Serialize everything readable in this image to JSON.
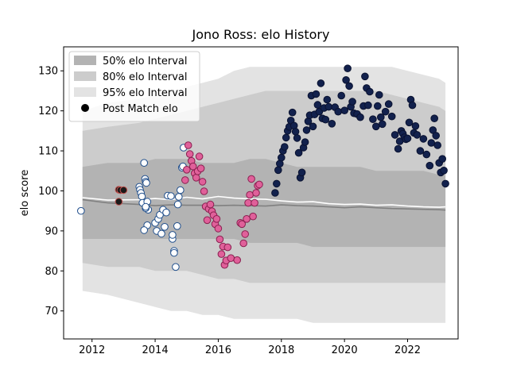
{
  "chart_data": {
    "type": "scatter",
    "title": "Jono Ross: elo History",
    "xlabel": "",
    "ylabel": "elo score",
    "xlim": [
      2011.1,
      2023.6
    ],
    "ylim": [
      63,
      136
    ],
    "xticks": [
      2012,
      2014,
      2016,
      2018,
      2020,
      2022
    ],
    "yticks": [
      70,
      80,
      90,
      100,
      110,
      120,
      130
    ],
    "grid": false,
    "legend_position": "top-left",
    "legend": {
      "band50": "50% elo Interval",
      "band80": "80% elo Interval",
      "band95": "95% elo Interval",
      "points": "Post Match elo"
    },
    "colors": {
      "band50": "#b3b3b3",
      "band80": "#cccccc",
      "band95": "#e3e3e3",
      "median_line": "#808080",
      "mean_line": "#ffffff",
      "seg_2012_fill": "#1a1a1a",
      "seg_2012_edge": "#c0504d",
      "seg_2013_fill": "#ffffff",
      "seg_2013_edge": "#1f4e8c",
      "seg_2015_fill": "#e0609a",
      "seg_2015_edge": "#8a2050",
      "seg_2018_fill": "#12214d",
      "seg_2018_edge": "#0a1230"
    },
    "bands": {
      "x": [
        2011.7,
        2012.5,
        2013.5,
        2014.0,
        2014.5,
        2015.0,
        2015.5,
        2016.0,
        2016.5,
        2017.0,
        2017.5,
        2018.0,
        2018.5,
        2019.0,
        2019.5,
        2020.0,
        2020.5,
        2021.0,
        2021.5,
        2022.0,
        2022.5,
        2023.0,
        2023.2
      ],
      "p95_upper": [
        120,
        122,
        123,
        124,
        125,
        126,
        127,
        128,
        130,
        131,
        131,
        131,
        131,
        131,
        131,
        131,
        131,
        131,
        131,
        130,
        129,
        128,
        127
      ],
      "p80_upper": [
        115,
        116,
        117,
        118,
        119,
        120,
        121,
        122,
        123,
        124,
        125,
        125,
        125,
        125,
        125,
        125,
        125,
        125,
        124,
        123,
        122,
        121,
        120
      ],
      "p50_upper": [
        106,
        107,
        107,
        108,
        108,
        108,
        107,
        107,
        107,
        108,
        108,
        107,
        106,
        106,
        106,
        106,
        106,
        105,
        105,
        105,
        105,
        104,
        104
      ],
      "p50_lower": [
        88,
        88,
        88,
        88,
        88,
        88,
        88,
        88,
        88,
        87,
        87,
        87,
        87,
        86,
        86,
        86,
        86,
        86,
        86,
        86,
        86,
        86,
        86
      ],
      "p80_lower": [
        82,
        81,
        81,
        80,
        80,
        80,
        79,
        78,
        78,
        77,
        77,
        77,
        77,
        77,
        77,
        77,
        77,
        77,
        77,
        77,
        77,
        77,
        77
      ],
      "p95_lower": [
        75,
        74,
        72,
        71,
        70,
        70,
        69,
        69,
        68,
        68,
        68,
        68,
        68,
        67,
        67,
        67,
        67,
        67,
        67,
        67,
        67,
        67,
        67
      ],
      "median": [
        97.8,
        97.0,
        96.6,
        96.3,
        96.5,
        96.4,
        96.4,
        96.3,
        96.4,
        96.3,
        96.2,
        96.5,
        96.3,
        96.2,
        96.0,
        95.8,
        96.0,
        95.8,
        95.6,
        95.5,
        95.4,
        95.3,
        95.2
      ],
      "mean": [
        98.3,
        97.7,
        97.8,
        98.1,
        97.8,
        98.4,
        98.0,
        98.6,
        98.2,
        98.0,
        97.9,
        97.5,
        97.2,
        97.3,
        96.8,
        96.6,
        96.7,
        96.4,
        96.5,
        96.2,
        96.0,
        95.9,
        96.0
      ]
    },
    "series": [
      {
        "group": "2012",
        "x": [
          2012.85,
          2012.9,
          2013.0,
          2012.85
        ],
        "y": [
          100.3,
          100.2,
          100.2,
          97.3
        ]
      },
      {
        "group": "2013",
        "x": [
          2011.65,
          2013.5,
          2013.52,
          2013.55,
          2013.58,
          2013.6,
          2013.65,
          2013.68,
          2013.7,
          2013.72,
          2013.75,
          2013.78,
          2013.7,
          2013.75,
          2013.65,
          2013.7,
          2014.0,
          2014.05,
          2014.1,
          2014.15,
          2014.2,
          2014.25,
          2014.3,
          2014.35,
          2014.4,
          2014.5,
          2014.55,
          2014.6,
          2014.65,
          2014.7,
          2014.72,
          2014.75,
          2014.8,
          2014.85,
          2014.88,
          2014.9,
          2014.6,
          2014.55
        ],
        "y": [
          95.0,
          101.0,
          100.3,
          99.5,
          98.6,
          97.0,
          107.0,
          103.0,
          102.3,
          102.0,
          97.3,
          95.3,
          95.7,
          91.4,
          90.2,
          96.0,
          92.0,
          90.0,
          93.0,
          94.0,
          89.3,
          95.3,
          91.0,
          94.6,
          98.8,
          98.7,
          88.0,
          85.0,
          81.0,
          91.2,
          96.6,
          98.5,
          100.2,
          105.8,
          106.1,
          110.8,
          84.5,
          89.0
        ]
      },
      {
        "group": "2015",
        "x": [
          2014.95,
          2015.0,
          2015.05,
          2015.1,
          2015.15,
          2015.2,
          2015.25,
          2015.3,
          2015.35,
          2015.4,
          2015.45,
          2015.5,
          2015.55,
          2015.6,
          2015.65,
          2015.7,
          2015.75,
          2015.8,
          2015.85,
          2015.9,
          2015.95,
          2016.0,
          2016.05,
          2016.1,
          2016.15,
          2016.2,
          2016.25,
          2016.3,
          2016.4,
          2016.6,
          2016.7,
          2016.75,
          2016.8,
          2016.85,
          2016.9,
          2016.95,
          2017.0,
          2017.05,
          2017.1,
          2017.15,
          2017.2,
          2017.25,
          2017.3
        ],
        "y": [
          102.7,
          105.3,
          111.4,
          109.2,
          107.5,
          106.1,
          104.4,
          103.3,
          104.9,
          108.6,
          105.6,
          102.3,
          99.9,
          96.1,
          92.7,
          95.5,
          96.6,
          94.9,
          93.9,
          91.7,
          93.0,
          90.6,
          87.9,
          84.2,
          86.1,
          81.5,
          82.6,
          85.9,
          83.2,
          82.7,
          92.0,
          91.7,
          86.9,
          89.2,
          93.0,
          97.0,
          99.0,
          103.0,
          93.6,
          97.0,
          99.5,
          101.3,
          101.6
        ]
      },
      {
        "group": "2018",
        "x": [
          2017.8,
          2017.85,
          2017.9,
          2017.95,
          2018.0,
          2018.05,
          2018.1,
          2018.15,
          2018.2,
          2018.25,
          2018.3,
          2018.35,
          2018.4,
          2018.45,
          2018.5,
          2018.55,
          2018.6,
          2018.65,
          2018.7,
          2018.75,
          2018.8,
          2018.85,
          2018.9,
          2018.95,
          2019.0,
          2019.05,
          2019.1,
          2019.15,
          2019.2,
          2019.25,
          2019.3,
          2019.35,
          2019.4,
          2019.45,
          2019.5,
          2019.6,
          2019.7,
          2019.8,
          2019.9,
          2020.0,
          2020.05,
          2020.1,
          2020.15,
          2020.2,
          2020.25,
          2020.3,
          2020.4,
          2020.5,
          2020.6,
          2020.65,
          2020.7,
          2020.75,
          2020.8,
          2020.9,
          2021.0,
          2021.05,
          2021.1,
          2021.15,
          2021.2,
          2021.3,
          2021.4,
          2021.5,
          2021.6,
          2021.7,
          2021.75,
          2021.8,
          2021.85,
          2021.9,
          2021.95,
          2022.0,
          2022.05,
          2022.1,
          2022.15,
          2022.2,
          2022.25,
          2022.3,
          2022.4,
          2022.5,
          2022.6,
          2022.7,
          2022.75,
          2022.8,
          2022.85,
          2022.9,
          2022.95,
          2023.0,
          2023.05,
          2023.1,
          2023.15,
          2023.2
        ],
        "y": [
          99.5,
          101.8,
          105.2,
          106.8,
          108.3,
          110.0,
          111.0,
          113.3,
          115.0,
          116.0,
          117.6,
          119.6,
          116.3,
          114.8,
          113.2,
          109.5,
          103.3,
          104.6,
          110.8,
          112.2,
          115.2,
          117.4,
          118.9,
          123.8,
          116.1,
          119.1,
          124.2,
          121.5,
          119.8,
          126.9,
          118.1,
          120.7,
          117.8,
          122.8,
          121.0,
          116.8,
          120.9,
          119.8,
          123.8,
          120.1,
          127.7,
          130.6,
          126.2,
          121.0,
          122.3,
          119.4,
          119.2,
          118.4,
          121.2,
          128.6,
          125.7,
          121.4,
          124.8,
          117.9,
          116.1,
          121.2,
          124.0,
          118.4,
          116.7,
          119.8,
          121.7,
          118.6,
          114.0,
          110.5,
          112.4,
          115.0,
          114.3,
          113.4,
          112.9,
          113.1,
          117.1,
          122.8,
          121.4,
          114.5,
          116.2,
          114.0,
          110.0,
          113.0,
          109.1,
          106.3,
          112.0,
          115.2,
          118.1,
          113.8,
          111.4,
          107.0,
          104.6,
          108.0,
          105.1,
          101.8
        ]
      }
    ]
  }
}
